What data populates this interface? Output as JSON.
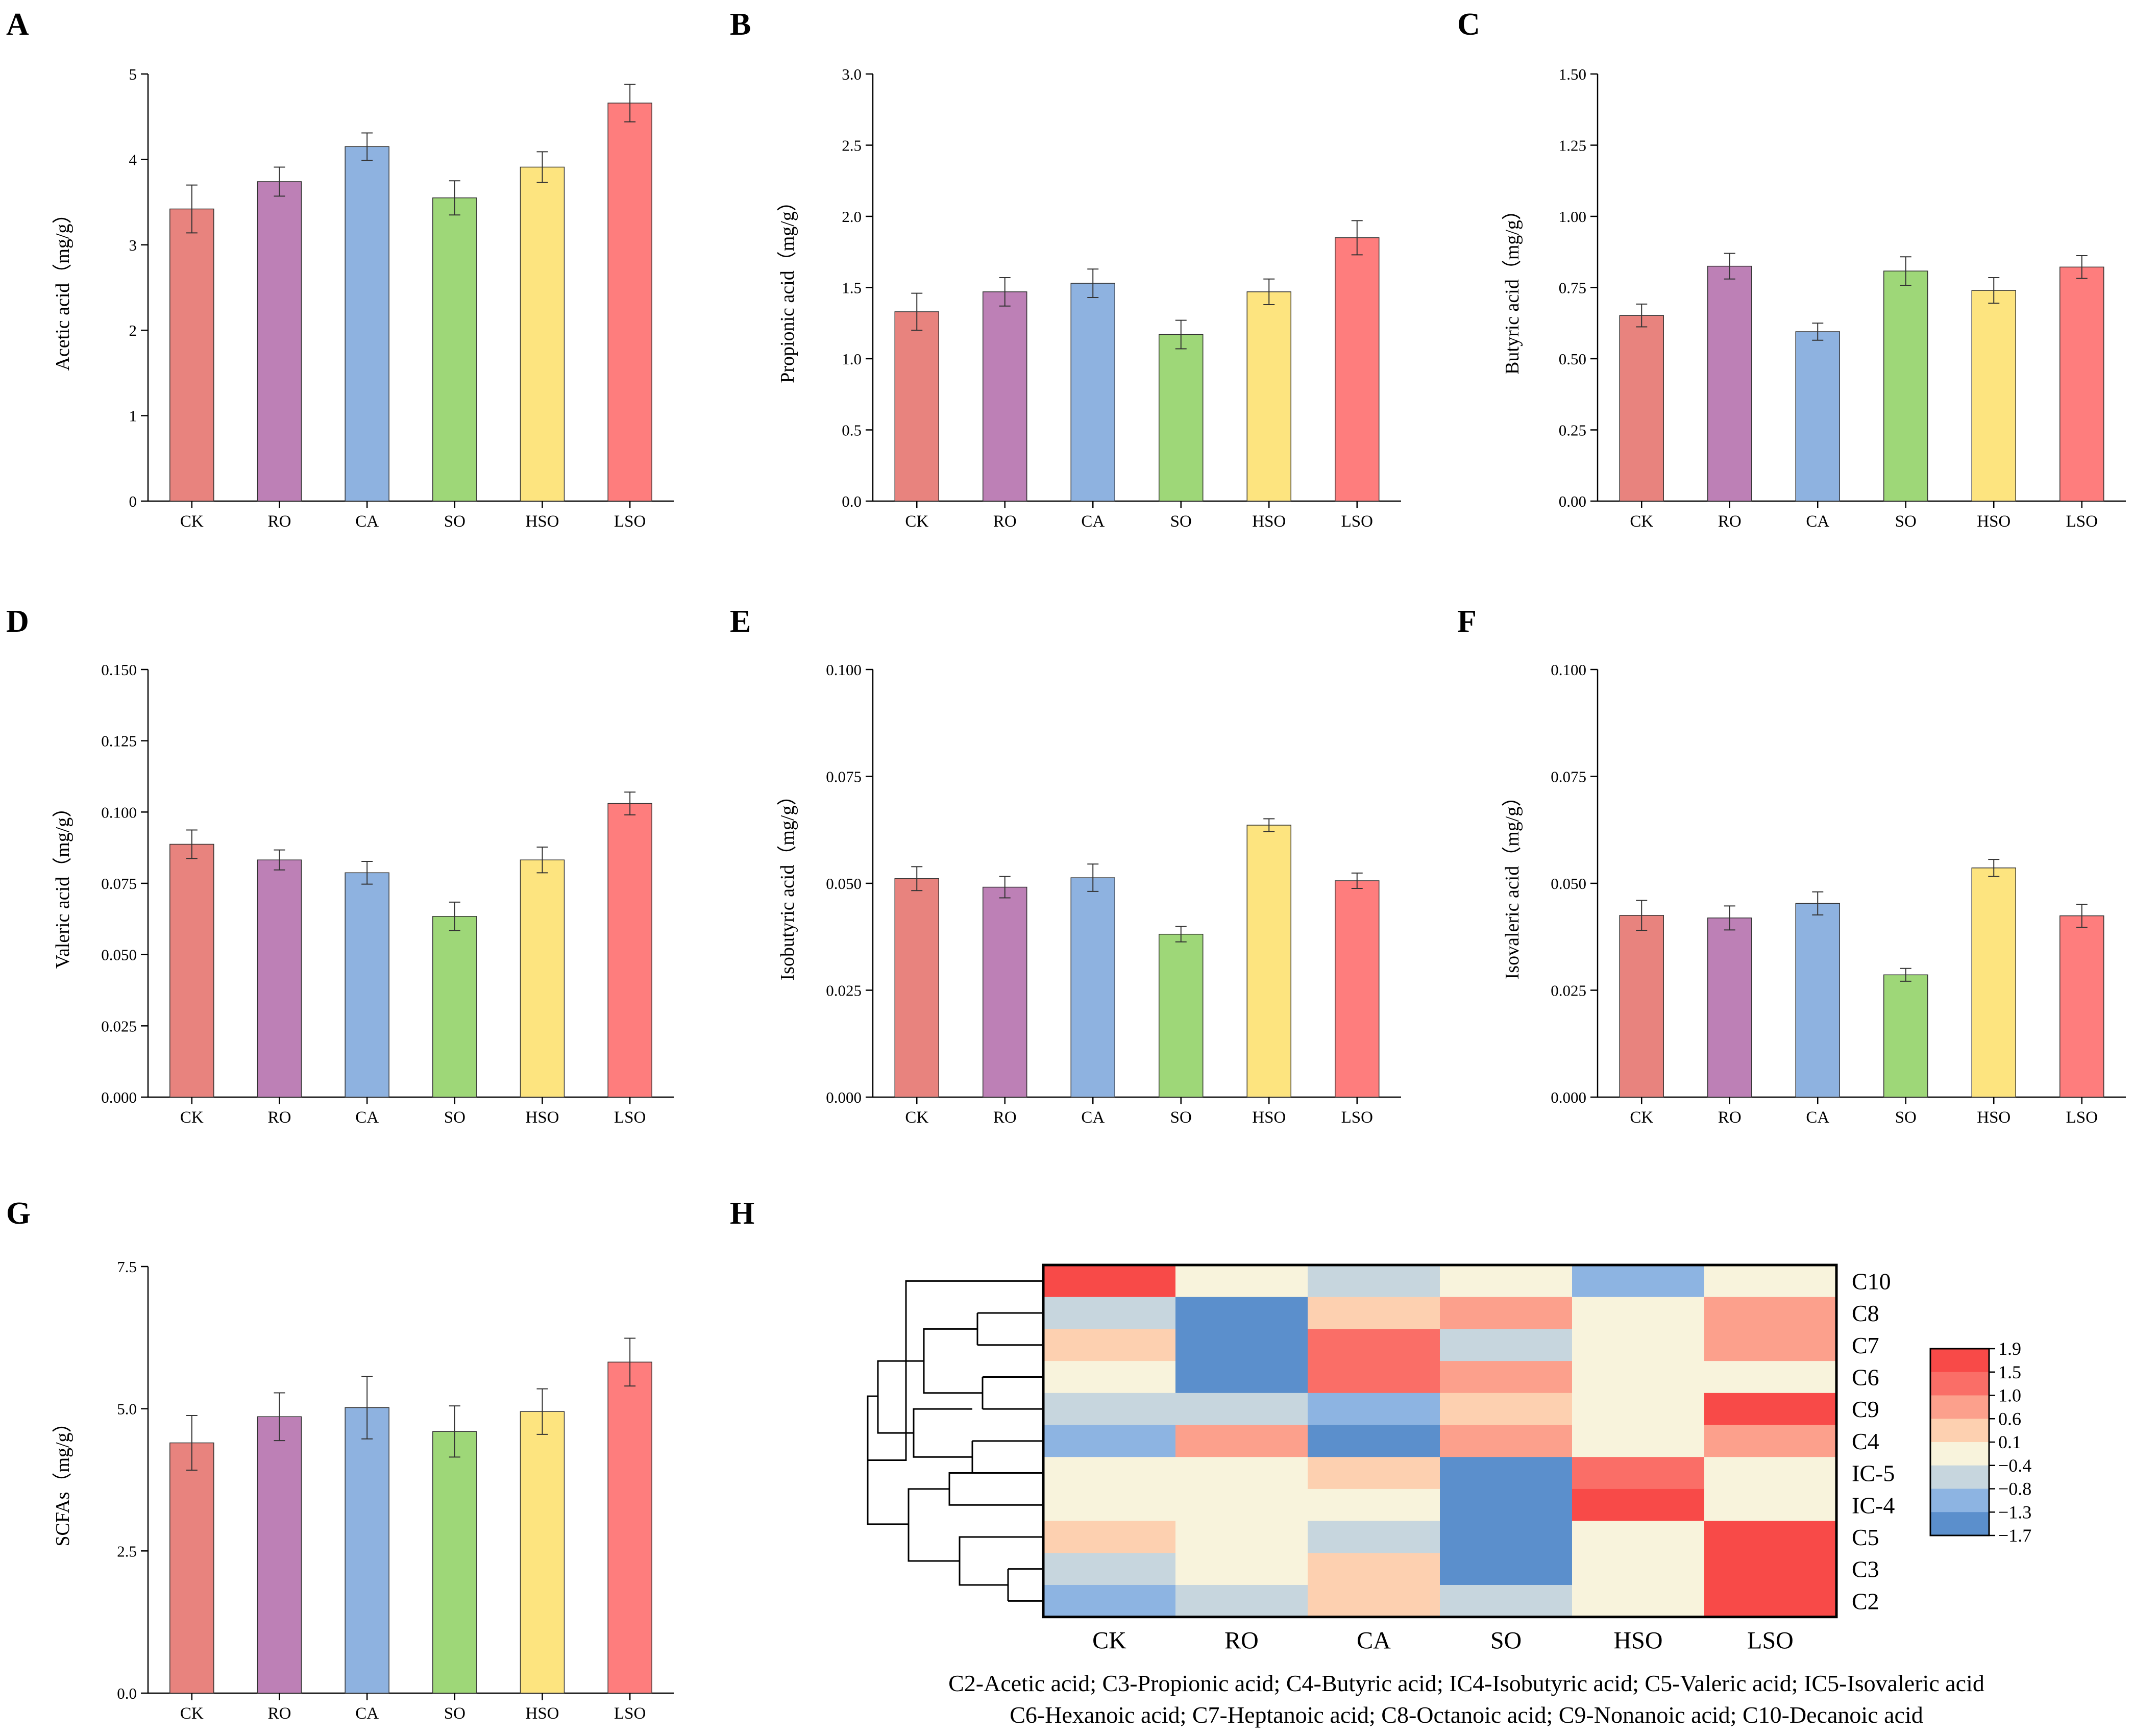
{
  "colors": {
    "bars": [
      "#e8837e",
      "#bd80b6",
      "#8eb2e0",
      "#9ed778",
      "#fde47f",
      "#fe7d7d"
    ],
    "heatmap_scale": [
      "#5b8fcc",
      "#8db4e2",
      "#c7d6de",
      "#f8f3dc",
      "#fdd0b0",
      "#fca08c",
      "#fa6e67",
      "#f84a48"
    ]
  },
  "chart_data": [
    {
      "panel": "A",
      "type": "bar",
      "categories": [
        "CK",
        "RO",
        "CA",
        "SO",
        "HSO",
        "LSO"
      ],
      "values": [
        3.42,
        3.74,
        4.15,
        3.55,
        3.91,
        4.66
      ],
      "errors": [
        0.28,
        0.17,
        0.16,
        0.2,
        0.18,
        0.22
      ],
      "ylabel": "Acetic acid（mg/g）",
      "ylim": [
        0,
        5
      ],
      "yticks": [
        "0",
        "1",
        "2",
        "3",
        "4",
        "5"
      ]
    },
    {
      "panel": "B",
      "type": "bar",
      "categories": [
        "CK",
        "RO",
        "CA",
        "SO",
        "HSO",
        "LSO"
      ],
      "values": [
        1.33,
        1.47,
        1.53,
        1.17,
        1.47,
        1.85
      ],
      "errors": [
        0.13,
        0.1,
        0.1,
        0.1,
        0.09,
        0.12
      ],
      "ylabel": "Propionic acid（mg/g）",
      "ylim": [
        0,
        3
      ],
      "yticks": [
        "0.0",
        "0.5",
        "1.0",
        "1.5",
        "2.0",
        "2.5",
        "3.0"
      ]
    },
    {
      "panel": "C",
      "type": "bar",
      "categories": [
        "CK",
        "RO",
        "CA",
        "SO",
        "HSO",
        "LSO"
      ],
      "values": [
        0.652,
        0.825,
        0.595,
        0.808,
        0.74,
        0.822
      ],
      "errors": [
        0.04,
        0.045,
        0.03,
        0.05,
        0.045,
        0.04
      ],
      "ylabel": "Butyric acid（mg/g）",
      "ylim": [
        0,
        1.5
      ],
      "yticks": [
        "0.00",
        "0.25",
        "0.50",
        "0.75",
        "1.00",
        "1.25",
        "1.50"
      ]
    },
    {
      "panel": "D",
      "type": "bar",
      "categories": [
        "CK",
        "RO",
        "CA",
        "SO",
        "HSO",
        "LSO"
      ],
      "values": [
        0.0887,
        0.0832,
        0.0787,
        0.0634,
        0.0832,
        0.103
      ],
      "errors": [
        0.005,
        0.0035,
        0.004,
        0.005,
        0.0045,
        0.004
      ],
      "ylabel": "Valeric acid（mg/g）",
      "ylim": [
        0,
        0.15
      ],
      "yticks": [
        "0.000",
        "0.025",
        "0.050",
        "0.075",
        "0.100",
        "0.125",
        "0.150"
      ]
    },
    {
      "panel": "E",
      "type": "bar",
      "categories": [
        "CK",
        "RO",
        "CA",
        "SO",
        "HSO",
        "LSO"
      ],
      "values": [
        0.0511,
        0.0491,
        0.0513,
        0.0381,
        0.0636,
        0.0506
      ],
      "errors": [
        0.0028,
        0.0025,
        0.0032,
        0.0018,
        0.0015,
        0.0018
      ],
      "ylabel": "Isobutyric acid（mg/g）",
      "ylim": [
        0,
        0.1
      ],
      "yticks": [
        "0.000",
        "0.025",
        "0.050",
        "0.075",
        "0.100"
      ]
    },
    {
      "panel": "F",
      "type": "bar",
      "categories": [
        "CK",
        "RO",
        "CA",
        "SO",
        "HSO",
        "LSO"
      ],
      "values": [
        0.0425,
        0.0419,
        0.0453,
        0.0286,
        0.0536,
        0.0424
      ],
      "errors": [
        0.0035,
        0.0028,
        0.0027,
        0.0015,
        0.002,
        0.0027
      ],
      "ylabel": "Isovaleric acid（mg/g）",
      "ylim": [
        0,
        0.1
      ],
      "yticks": [
        "0.000",
        "0.025",
        "0.050",
        "0.075",
        "0.100"
      ]
    },
    {
      "panel": "G",
      "type": "bar",
      "categories": [
        "CK",
        "RO",
        "CA",
        "SO",
        "HSO",
        "LSO"
      ],
      "values": [
        4.4,
        4.86,
        5.02,
        4.6,
        4.95,
        5.82
      ],
      "errors": [
        0.48,
        0.42,
        0.55,
        0.45,
        0.4,
        0.42
      ],
      "ylabel": "SCFAs（mg/g）",
      "ylim": [
        0,
        7.5
      ],
      "yticks": [
        "0.0",
        "2.5",
        "5.0",
        "7.5"
      ]
    },
    {
      "panel": "H",
      "type": "heatmap",
      "columns": [
        "CK",
        "RO",
        "CA",
        "SO",
        "HSO",
        "LSO"
      ],
      "rows": [
        "C10",
        "C8",
        "C7",
        "C6",
        "C9",
        "C4",
        "IC-5",
        "IC-4",
        "C5",
        "C3",
        "C2"
      ],
      "values": [
        [
          1.9,
          -0.2,
          -0.6,
          -0.2,
          -1.1,
          -0.2
        ],
        [
          -0.6,
          -1.7,
          0.3,
          0.9,
          -0.2,
          0.8
        ],
        [
          0.3,
          -1.7,
          1.3,
          -0.6,
          -0.2,
          0.8
        ],
        [
          -0.2,
          -1.7,
          1.3,
          0.8,
          -0.2,
          -0.2
        ],
        [
          -0.6,
          -0.6,
          -1.1,
          0.3,
          -0.2,
          1.9
        ],
        [
          -1.1,
          0.9,
          -1.7,
          0.8,
          -0.2,
          0.8
        ],
        [
          -0.2,
          -0.2,
          0.3,
          -1.7,
          1.4,
          -0.2
        ],
        [
          -0.2,
          -0.2,
          -0.2,
          -1.7,
          1.9,
          -0.2
        ],
        [
          0.3,
          -0.2,
          -0.6,
          -1.7,
          -0.2,
          1.9
        ],
        [
          -0.6,
          -0.2,
          0.3,
          -1.7,
          -0.2,
          1.9
        ],
        [
          -1.1,
          -0.6,
          0.3,
          -0.6,
          -0.2,
          1.9
        ]
      ],
      "colorbar_ticks": [
        "1.9",
        "1.5",
        "1.0",
        "0.6",
        "0.1",
        "−0.4",
        "−0.8",
        "−1.3",
        "−1.7"
      ],
      "footnote": [
        "C2-Acetic acid; C3-Propionic acid; C4-Butyric acid; IC4-Isobutyric acid; C5-Valeric acid; IC5-Isovaleric acid",
        "C6-Hexanoic acid; C7-Heptanoic acid; C8-Octanoic acid; C9-Nonanoic acid; C10-Decanoic acid"
      ]
    }
  ]
}
